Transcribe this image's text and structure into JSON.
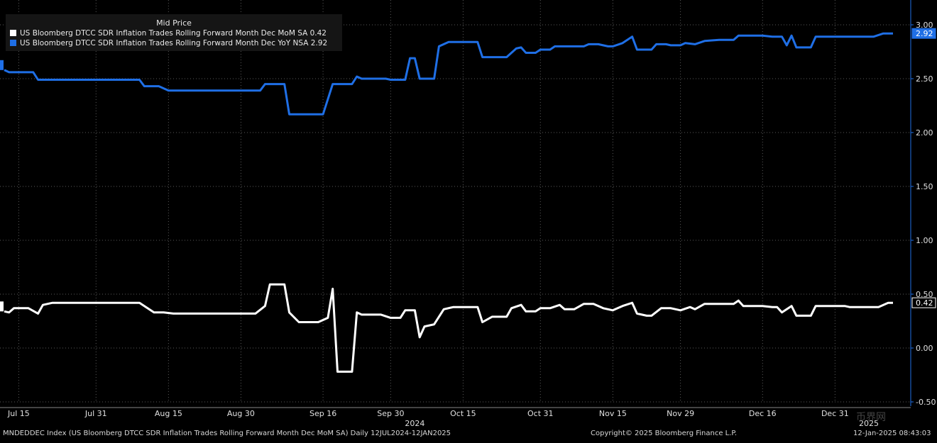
{
  "colors": {
    "series1": "#ffffff",
    "series2": "#1f6fe6",
    "axis": "#1f6fe6",
    "grid": "#5a5a5a",
    "background": "#000000"
  },
  "legend": {
    "title": "Mid Price",
    "items": [
      {
        "label": "US Bloomberg DTCC SDR Inflation Trades Rolling Forward Month Dec MoM SA  0.42",
        "color": "#ffffff"
      },
      {
        "label": "US Bloomberg DTCC SDR Inflation Trades Rolling Forward Month Dec YoY NSA 2.92",
        "color": "#1f6fe6"
      }
    ]
  },
  "footer": {
    "left": "MNDEDDEC Index (US Bloomberg DTCC SDR Inflation Trades Rolling Forward Month Dec MoM SA)  Daily 12JUL2024-12JAN2025",
    "center": "Copyright© 2025 Bloomberg Finance L.P.",
    "right": "12-Jan-2025 08:43:03"
  },
  "watermark": "币界网",
  "chart_data": {
    "type": "line",
    "ylim": [
      -0.5,
      3.0
    ],
    "yticks": [
      "3.00",
      "2.50",
      "2.00",
      "1.50",
      "1.00",
      "0.50",
      "0.00",
      "-0.50"
    ],
    "ytick_values": [
      3.0,
      2.5,
      2.0,
      1.5,
      1.0,
      0.5,
      0.0,
      -0.5
    ],
    "xlim": [
      0,
      184
    ],
    "xticks": [
      {
        "label": "Jul 15",
        "x": 3
      },
      {
        "label": "Jul 31",
        "x": 19
      },
      {
        "label": "Aug 15",
        "x": 34
      },
      {
        "label": "Aug 30",
        "x": 49
      },
      {
        "label": "Sep 16",
        "x": 66
      },
      {
        "label": "Sep 30",
        "x": 80
      },
      {
        "label": "Oct 15",
        "x": 95
      },
      {
        "label": "Oct 31",
        "x": 111
      },
      {
        "label": "Nov 15",
        "x": 126
      },
      {
        "label": "Nov 29",
        "x": 140
      },
      {
        "label": "Dec 16",
        "x": 157
      },
      {
        "label": "Dec 31",
        "x": 172
      }
    ],
    "year_labels": [
      {
        "label": "2024",
        "x": 85
      },
      {
        "label": "2025",
        "x": 179
      }
    ],
    "grid": true,
    "series": [
      {
        "name": "US Bloomberg DTCC SDR Inflation Trades Rolling Forward Month Dec MoM SA",
        "color": "#ffffff",
        "last_label": "0.42",
        "points": [
          [
            0,
            0.34
          ],
          [
            1,
            0.33
          ],
          [
            2,
            0.37
          ],
          [
            5,
            0.37
          ],
          [
            7,
            0.32
          ],
          [
            8,
            0.4
          ],
          [
            10,
            0.42
          ],
          [
            28,
            0.42
          ],
          [
            31,
            0.33
          ],
          [
            33,
            0.33
          ],
          [
            35,
            0.32
          ],
          [
            52,
            0.32
          ],
          [
            54,
            0.39
          ],
          [
            55,
            0.59
          ],
          [
            58,
            0.59
          ],
          [
            59,
            0.33
          ],
          [
            61,
            0.24
          ],
          [
            65,
            0.24
          ],
          [
            67,
            0.28
          ],
          [
            68,
            0.55
          ],
          [
            69,
            -0.22
          ],
          [
            72,
            -0.22
          ],
          [
            73,
            0.33
          ],
          [
            74,
            0.31
          ],
          [
            78,
            0.31
          ],
          [
            80,
            0.28
          ],
          [
            82,
            0.28
          ],
          [
            83,
            0.35
          ],
          [
            85,
            0.35
          ],
          [
            86,
            0.1
          ],
          [
            87,
            0.2
          ],
          [
            89,
            0.22
          ],
          [
            91,
            0.36
          ],
          [
            93,
            0.38
          ],
          [
            98,
            0.38
          ],
          [
            99,
            0.24
          ],
          [
            101,
            0.29
          ],
          [
            104,
            0.29
          ],
          [
            105,
            0.37
          ],
          [
            107,
            0.4
          ],
          [
            108,
            0.34
          ],
          [
            110,
            0.34
          ],
          [
            111,
            0.37
          ],
          [
            113,
            0.37
          ],
          [
            115,
            0.4
          ],
          [
            116,
            0.36
          ],
          [
            118,
            0.36
          ],
          [
            120,
            0.41
          ],
          [
            122,
            0.41
          ],
          [
            124,
            0.37
          ],
          [
            126,
            0.35
          ],
          [
            128,
            0.39
          ],
          [
            130,
            0.42
          ],
          [
            131,
            0.32
          ],
          [
            133,
            0.3
          ],
          [
            134,
            0.3
          ],
          [
            136,
            0.37
          ],
          [
            138,
            0.37
          ],
          [
            140,
            0.35
          ],
          [
            142,
            0.38
          ],
          [
            143,
            0.36
          ],
          [
            145,
            0.41
          ],
          [
            148,
            0.41
          ],
          [
            151,
            0.41
          ],
          [
            152,
            0.44
          ],
          [
            153,
            0.39
          ],
          [
            157,
            0.39
          ],
          [
            159,
            0.38
          ],
          [
            160,
            0.38
          ],
          [
            161,
            0.33
          ],
          [
            163,
            0.39
          ],
          [
            164,
            0.3
          ],
          [
            167,
            0.3
          ],
          [
            168,
            0.39
          ],
          [
            174,
            0.39
          ],
          [
            175,
            0.38
          ],
          [
            181,
            0.38
          ],
          [
            183,
            0.42
          ],
          [
            184,
            0.42
          ]
        ]
      },
      {
        "name": "US Bloomberg DTCC SDR Inflation Trades Rolling Forward Month Dec YoY NSA",
        "color": "#1f6fe6",
        "last_label": "2.92",
        "points": [
          [
            0,
            2.58
          ],
          [
            1,
            2.56
          ],
          [
            6,
            2.56
          ],
          [
            7,
            2.49
          ],
          [
            28,
            2.49
          ],
          [
            29,
            2.43
          ],
          [
            32,
            2.43
          ],
          [
            34,
            2.39
          ],
          [
            53,
            2.39
          ],
          [
            54,
            2.45
          ],
          [
            58,
            2.45
          ],
          [
            59,
            2.17
          ],
          [
            66,
            2.17
          ],
          [
            68,
            2.45
          ],
          [
            72,
            2.45
          ],
          [
            73,
            2.52
          ],
          [
            74,
            2.5
          ],
          [
            79,
            2.5
          ],
          [
            80,
            2.49
          ],
          [
            83,
            2.49
          ],
          [
            84,
            2.69
          ],
          [
            85,
            2.69
          ],
          [
            86,
            2.5
          ],
          [
            89,
            2.5
          ],
          [
            90,
            2.8
          ],
          [
            92,
            2.84
          ],
          [
            98,
            2.84
          ],
          [
            99,
            2.7
          ],
          [
            104,
            2.7
          ],
          [
            106,
            2.78
          ],
          [
            107,
            2.79
          ],
          [
            108,
            2.74
          ],
          [
            110,
            2.74
          ],
          [
            111,
            2.77
          ],
          [
            113,
            2.77
          ],
          [
            114,
            2.8
          ],
          [
            120,
            2.8
          ],
          [
            121,
            2.82
          ],
          [
            123,
            2.82
          ],
          [
            125,
            2.8
          ],
          [
            126,
            2.8
          ],
          [
            128,
            2.83
          ],
          [
            130,
            2.89
          ],
          [
            131,
            2.77
          ],
          [
            134,
            2.77
          ],
          [
            135,
            2.82
          ],
          [
            137,
            2.82
          ],
          [
            138,
            2.81
          ],
          [
            140,
            2.81
          ],
          [
            141,
            2.83
          ],
          [
            143,
            2.82
          ],
          [
            145,
            2.85
          ],
          [
            148,
            2.86
          ],
          [
            151,
            2.86
          ],
          [
            152,
            2.9
          ],
          [
            157,
            2.9
          ],
          [
            159,
            2.89
          ],
          [
            161,
            2.89
          ],
          [
            162,
            2.81
          ],
          [
            163,
            2.9
          ],
          [
            164,
            2.79
          ],
          [
            167,
            2.79
          ],
          [
            168,
            2.89
          ],
          [
            174,
            2.89
          ],
          [
            175,
            2.89
          ],
          [
            180,
            2.89
          ],
          [
            182,
            2.92
          ],
          [
            184,
            2.92
          ]
        ]
      }
    ]
  }
}
